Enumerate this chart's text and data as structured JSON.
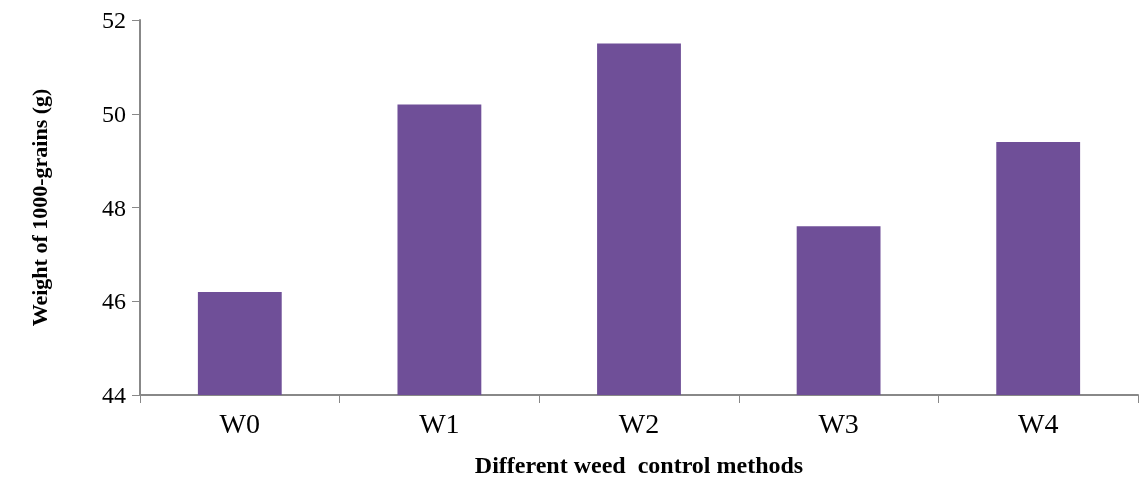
{
  "chart_data": {
    "type": "bar",
    "xlabel": "Different weed  control methods",
    "ylabel": "Weight of 1000-grains (g)",
    "categories": [
      "W0",
      "W1",
      "W2",
      "W3",
      "W4"
    ],
    "values": [
      46.2,
      50.2,
      51.5,
      47.6,
      49.4
    ],
    "color": "#6f4f98",
    "ylim": [
      44,
      52
    ],
    "yticks": [
      44,
      46,
      48,
      50,
      52
    ]
  }
}
